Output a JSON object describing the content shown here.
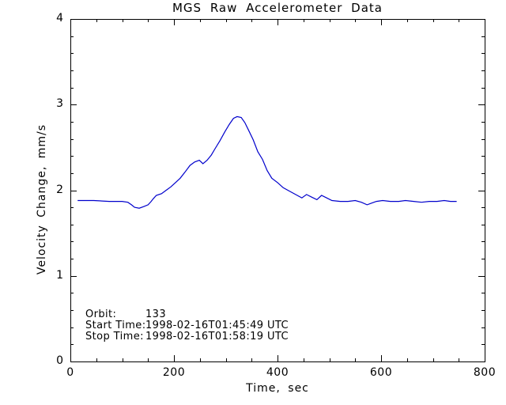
{
  "title": "MGS Raw Accelerometer Data",
  "axes": {
    "x": {
      "label": "Time, sec",
      "min": 0,
      "max": 800,
      "major_ticks": [
        0,
        200,
        400,
        600,
        800
      ],
      "tick_labels": [
        "0",
        "200",
        "400",
        "600",
        "800"
      ],
      "minor_step": 50
    },
    "y": {
      "label": "Velocity Change, mm/s",
      "min": 0,
      "max": 4,
      "major_ticks": [
        0,
        1,
        2,
        3,
        4
      ],
      "tick_labels": [
        "0",
        "1",
        "2",
        "3",
        "4"
      ],
      "minor_step": 0.2
    }
  },
  "annotations": {
    "rows": [
      {
        "label": "Orbit:",
        "value": "133"
      },
      {
        "label": "Start Time:",
        "value": "1998-02-16T01:45:49 UTC"
      },
      {
        "label": "Stop Time:",
        "value": "1998-02-16T01:58:19 UTC"
      }
    ]
  },
  "colors": {
    "line": "#0000cc",
    "frame": "#000000",
    "text": "#000000",
    "background": "#ffffff"
  },
  "chart_data": {
    "type": "line",
    "title": "MGS Raw Accelerometer Data",
    "xlabel": "Time, sec",
    "ylabel": "Velocity Change, mm/s",
    "xlim": [
      0,
      800
    ],
    "ylim": [
      0,
      4
    ],
    "grid": false,
    "legend": false,
    "series": [
      {
        "name": "velocity-change",
        "color": "#0000cc",
        "x": [
          14,
          45,
          75,
          100,
          111,
          118,
          124,
          133,
          142,
          150,
          156,
          160,
          166,
          176,
          185,
          194,
          203,
          212,
          221,
          231,
          240,
          249,
          256,
          264,
          272,
          279,
          289,
          298,
          307,
          315,
          322,
          330,
          337,
          345,
          353,
          362,
          371,
          380,
          389,
          400,
          411,
          423,
          435,
          447,
          456,
          466,
          476,
          485,
          495,
          505,
          521,
          536,
          550,
          562,
          573,
          582,
          591,
          603,
          618,
          634,
          647,
          663,
          678,
          693,
          708,
          722,
          734,
          746
        ],
        "y": [
          1.88,
          1.88,
          1.87,
          1.87,
          1.86,
          1.83,
          1.8,
          1.79,
          1.81,
          1.83,
          1.87,
          1.9,
          1.94,
          1.96,
          2.0,
          2.04,
          2.09,
          2.14,
          2.21,
          2.29,
          2.33,
          2.35,
          2.31,
          2.35,
          2.41,
          2.48,
          2.58,
          2.68,
          2.77,
          2.84,
          2.86,
          2.85,
          2.79,
          2.69,
          2.59,
          2.45,
          2.36,
          2.23,
          2.14,
          2.09,
          2.03,
          1.99,
          1.95,
          1.91,
          1.95,
          1.92,
          1.89,
          1.94,
          1.91,
          1.88,
          1.87,
          1.87,
          1.88,
          1.86,
          1.83,
          1.85,
          1.87,
          1.88,
          1.87,
          1.87,
          1.88,
          1.87,
          1.86,
          1.87,
          1.87,
          1.88,
          1.87,
          1.87
        ]
      }
    ]
  }
}
